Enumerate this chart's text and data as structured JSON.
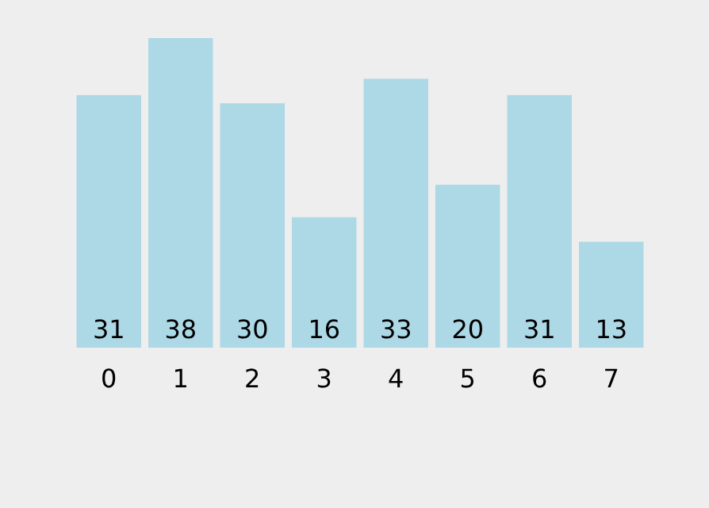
{
  "chart_data": {
    "type": "bar",
    "categories": [
      "0",
      "1",
      "2",
      "3",
      "4",
      "5",
      "6",
      "7"
    ],
    "values": [
      31,
      38,
      30,
      16,
      33,
      20,
      31,
      13
    ],
    "color": "#add8e6",
    "data_labels": true
  }
}
